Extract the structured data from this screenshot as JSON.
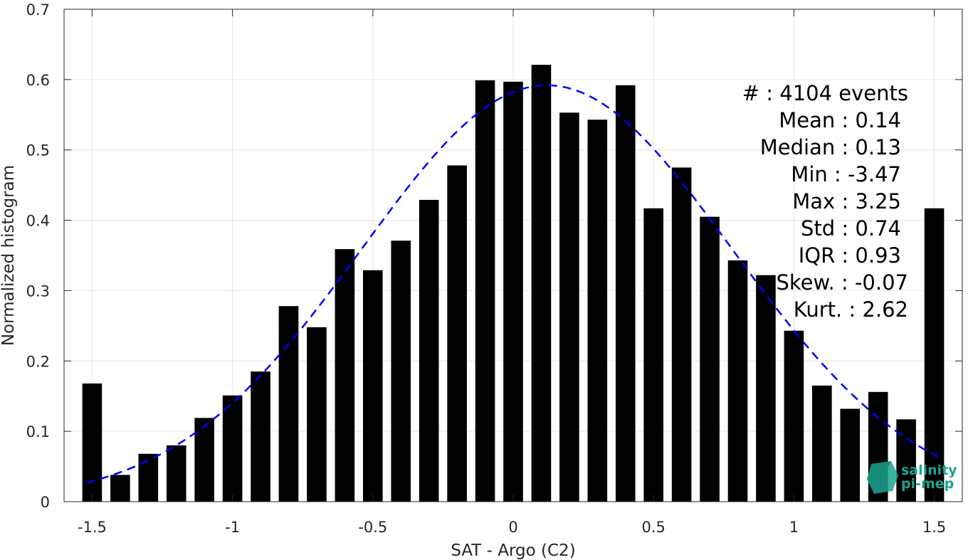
{
  "chart_data": {
    "type": "bar",
    "xlabel": "SAT - Argo (C2)",
    "ylabel": "Normalized histogram",
    "xlim": [
      -1.6,
      1.6
    ],
    "ylim": [
      0,
      0.7
    ],
    "grid": true,
    "x_ticks": [
      -1.5,
      -1,
      -0.5,
      0,
      0.5,
      1,
      1.5
    ],
    "x_tick_labels": [
      "-1.5",
      "-1",
      "-0.5",
      "0",
      "0.5",
      "1",
      "1.5"
    ],
    "y_ticks": [
      0,
      0.1,
      0.2,
      0.3,
      0.4,
      0.5,
      0.6,
      0.7
    ],
    "y_tick_labels": [
      "0",
      "0.1",
      "0.2",
      "0.3",
      "0.4",
      "0.5",
      "0.6",
      "0.7"
    ],
    "bar_width": 0.07,
    "bars": {
      "x": [
        -1.5,
        -1.4,
        -1.3,
        -1.2,
        -1.1,
        -1.0,
        -0.9,
        -0.8,
        -0.7,
        -0.6,
        -0.5,
        -0.4,
        -0.3,
        -0.2,
        -0.1,
        0.0,
        0.1,
        0.2,
        0.3,
        0.4,
        0.5,
        0.6,
        0.7,
        0.8,
        0.9,
        1.0,
        1.1,
        1.2,
        1.3,
        1.4,
        1.5
      ],
      "values": [
        0.168,
        0.038,
        0.068,
        0.08,
        0.119,
        0.151,
        0.185,
        0.278,
        0.248,
        0.359,
        0.329,
        0.371,
        0.429,
        0.478,
        0.599,
        0.597,
        0.621,
        0.553,
        0.543,
        0.592,
        0.417,
        0.475,
        0.405,
        0.343,
        0.322,
        0.243,
        0.165,
        0.132,
        0.156,
        0.117,
        0.417
      ],
      "color": "#000000"
    },
    "fit": {
      "style": "dashed",
      "color": "#0000ff",
      "mean": 0.12,
      "std": 0.66,
      "peak": 0.592,
      "x_range": [
        -1.52,
        1.52
      ]
    },
    "annotations": [
      "#  : 4104 events",
      "Mean : 0.14",
      "Median : 0.13",
      "Min : -3.47",
      "Max : 3.25",
      "Std : 0.74",
      "IQR : 0.93",
      "Skew. : -0.07",
      "Kurt. : 2.62"
    ],
    "logo": {
      "line1": "salinity",
      "line2": "pi-mep",
      "color": "#1aa58f"
    }
  }
}
